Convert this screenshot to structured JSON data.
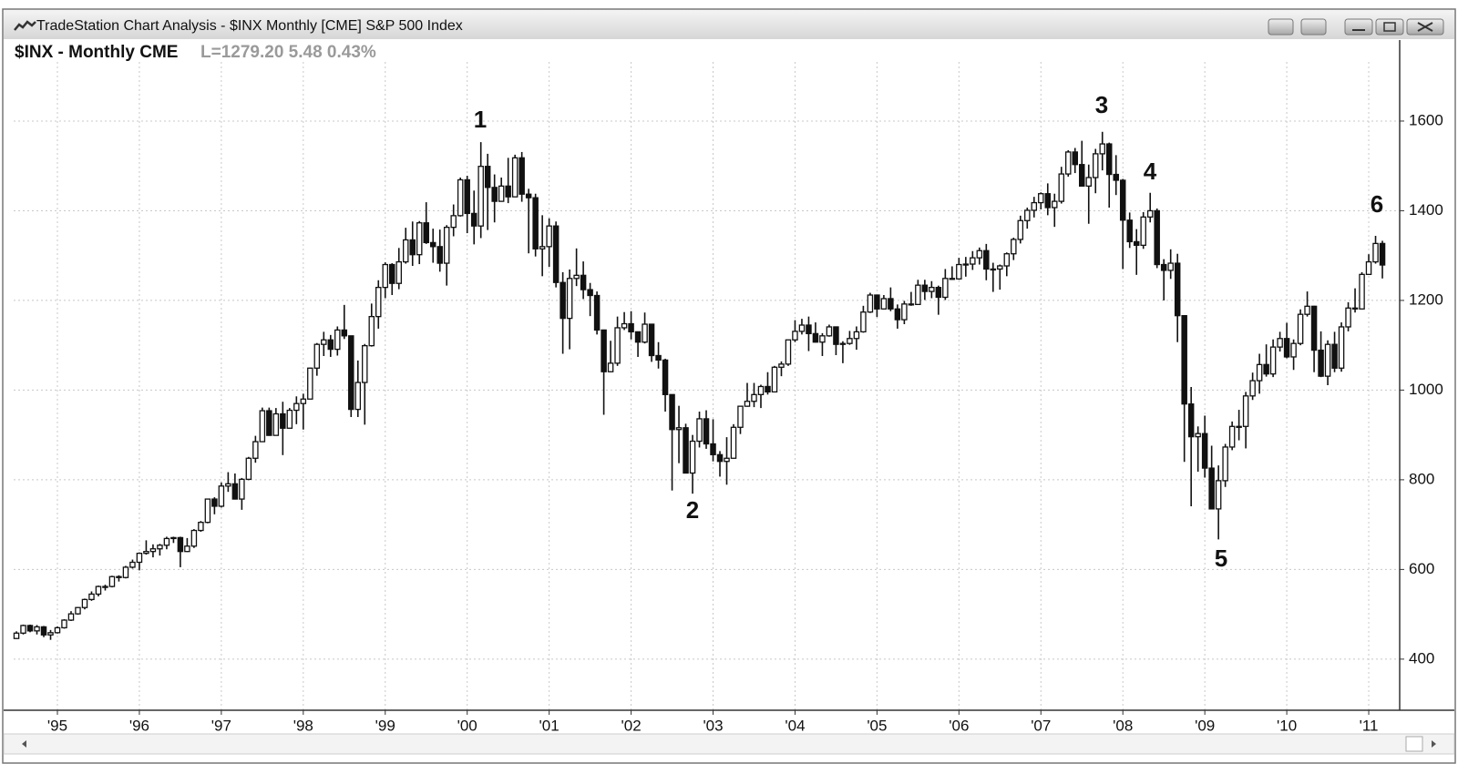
{
  "window": {
    "title": "TradeStation Chart Analysis - $INX Monthly [CME] S&P 500 Index"
  },
  "chart_data": {
    "type": "candlestick",
    "title": "$INX - Monthly CME",
    "subtitle": "L=1279.20 5.48 0.43%",
    "annotations": [
      "1",
      "2",
      "3",
      "4",
      "5",
      "6"
    ],
    "up_color": "#ffffff",
    "down_color": "#111111",
    "line_color": "#111111",
    "grid": true,
    "ylim": [
      286,
      1738
    ],
    "yticks": [
      400,
      600,
      800,
      1000,
      1200,
      1400,
      1600
    ],
    "categories": [
      null,
      null,
      null,
      null,
      null,
      null,
      "'95",
      null,
      null,
      null,
      null,
      null,
      null,
      null,
      null,
      null,
      null,
      null,
      "'96",
      null,
      null,
      null,
      null,
      null,
      null,
      null,
      null,
      null,
      null,
      null,
      "'97",
      null,
      null,
      null,
      null,
      null,
      null,
      null,
      null,
      null,
      null,
      null,
      "'98",
      null,
      null,
      null,
      null,
      null,
      null,
      null,
      null,
      null,
      null,
      null,
      "'99",
      null,
      null,
      null,
      null,
      null,
      null,
      null,
      null,
      null,
      null,
      null,
      "'00",
      null,
      null,
      null,
      null,
      null,
      null,
      null,
      null,
      null,
      null,
      null,
      "'01",
      null,
      null,
      null,
      null,
      null,
      null,
      null,
      null,
      null,
      null,
      null,
      "'02",
      null,
      null,
      null,
      null,
      null,
      null,
      null,
      null,
      null,
      null,
      null,
      "'03",
      null,
      null,
      null,
      null,
      null,
      null,
      null,
      null,
      null,
      null,
      null,
      "'04",
      null,
      null,
      null,
      null,
      null,
      null,
      null,
      null,
      null,
      null,
      null,
      "'05",
      null,
      null,
      null,
      null,
      null,
      null,
      null,
      null,
      null,
      null,
      null,
      "'06",
      null,
      null,
      null,
      null,
      null,
      null,
      null,
      null,
      null,
      null,
      null,
      "'07",
      null,
      null,
      null,
      null,
      null,
      null,
      null,
      null,
      null,
      null,
      null,
      "'08",
      null,
      null,
      null,
      null,
      null,
      null,
      null,
      null,
      null,
      null,
      null,
      "'09",
      null,
      null,
      null,
      null,
      null,
      null,
      null,
      null,
      null,
      null,
      null,
      "'10",
      null,
      null,
      null,
      null,
      null,
      null,
      null,
      null,
      null,
      null,
      null,
      "'11",
      null,
      null
    ],
    "open": [
      446,
      458,
      475,
      463,
      472,
      454,
      459,
      470,
      487,
      501,
      515,
      533,
      545,
      562,
      562,
      584,
      582,
      605,
      616,
      636,
      640,
      646,
      654,
      669,
      671,
      640,
      652,
      687,
      705,
      757,
      741,
      786,
      791,
      757,
      801,
      848,
      885,
      954,
      899,
      947,
      915,
      955,
      970,
      980,
      1049,
      1102,
      1112,
      1091,
      1134,
      1121,
      957,
      1017,
      1099,
      1164,
      1229,
      1280,
      1238,
      1286,
      1335,
      1302,
      1373,
      1329,
      1320,
      1283,
      1363,
      1389,
      1469,
      1394,
      1366,
      1499,
      1452,
      1421,
      1455,
      1431,
      1518,
      1437,
      1429,
      1315,
      1320,
      1366,
      1240,
      1160,
      1249,
      1256,
      1224,
      1211,
      1134,
      1041,
      1060,
      1139,
      1148,
      1130,
      1107,
      1147,
      1077,
      1067,
      990,
      912,
      916,
      815,
      886,
      936,
      880,
      856,
      841,
      848,
      917,
      964,
      975,
      990,
      1008,
      996,
      1051,
      1058,
      1112,
      1131,
      1145,
      1126,
      1107,
      1121,
      1141,
      1102,
      1104,
      1115,
      1130,
      1174,
      1212,
      1181,
      1204,
      1181,
      1157,
      1192,
      1191,
      1234,
      1220,
      1229,
      1207,
      1249,
      1248,
      1280,
      1281,
      1295,
      1311,
      1270,
      1270,
      1277,
      1304,
      1336,
      1378,
      1401,
      1418,
      1438,
      1407,
      1421,
      1482,
      1531,
      1503,
      1455,
      1474,
      1527,
      1549,
      1481,
      1468,
      1379,
      1331,
      1323,
      1386,
      1400,
      1280,
      1267,
      1283,
      1166,
      969,
      896,
      903,
      826,
      735,
      798,
      873,
      919,
      919,
      987,
      1021,
      1057,
      1036,
      1096,
      1115,
      1074,
      1104,
      1169,
      1187,
      1089,
      1031,
      1102,
      1049,
      1141,
      1183,
      1181,
      1258,
      1286,
      1327
    ],
    "high": [
      462,
      477,
      477,
      476,
      474,
      465,
      473,
      489,
      507,
      516,
      535,
      551,
      564,
      566,
      586,
      587,
      608,
      622,
      638,
      665,
      656,
      657,
      673,
      673,
      673,
      670,
      690,
      708,
      757,
      761,
      794,
      817,
      814,
      804,
      851,
      898,
      961,
      961,
      960,
      974,
      960,
      986,
      992,
      1050,
      1105,
      1130,
      1123,
      1142,
      1190,
      1121,
      1066,
      1103,
      1193,
      1245,
      1285,
      1283,
      1317,
      1362,
      1376,
      1377,
      1419,
      1360,
      1358,
      1368,
      1414,
      1474,
      1478,
      1445,
      1553,
      1527,
      1481,
      1474,
      1518,
      1525,
      1531,
      1449,
      1438,
      1390,
      1383,
      1376,
      1263,
      1269,
      1316,
      1287,
      1239,
      1220,
      1135,
      1110,
      1164,
      1174,
      1176,
      1130,
      1173,
      1147,
      1107,
      1070,
      990,
      965,
      925,
      900,
      952,
      955,
      935,
      864,
      895,
      924,
      965,
      1016,
      1016,
      1012,
      1040,
      1054,
      1064,
      1112,
      1156,
      1159,
      1164,
      1151,
      1127,
      1146,
      1141,
      1109,
      1132,
      1142,
      1188,
      1217,
      1212,
      1212,
      1229,
      1191,
      1199,
      1219,
      1246,
      1246,
      1243,
      1233,
      1270,
      1276,
      1295,
      1297,
      1310,
      1318,
      1326,
      1284,
      1280,
      1307,
      1340,
      1389,
      1407,
      1431,
      1441,
      1461,
      1438,
      1498,
      1535,
      1540,
      1556,
      1503,
      1538,
      1576,
      1552,
      1524,
      1471,
      1396,
      1359,
      1397,
      1440,
      1405,
      1292,
      1314,
      1304,
      1167,
      1007,
      919,
      943,
      876,
      832,
      880,
      930,
      956,
      996,
      1039,
      1081,
      1102,
      1113,
      1130,
      1150,
      1113,
      1180,
      1220,
      1188,
      1131,
      1111,
      1130,
      1151,
      1196,
      1227,
      1263,
      1303,
      1344,
      1333
    ],
    "low": [
      445,
      455,
      460,
      455,
      449,
      443,
      457,
      468,
      485,
      499,
      511,
      530,
      540,
      553,
      560,
      573,
      580,
      602,
      598,
      633,
      627,
      631,
      645,
      659,
      605,
      639,
      648,
      684,
      703,
      723,
      738,
      773,
      756,
      733,
      799,
      838,
      884,
      898,
      899,
      855,
      916,
      924,
      912,
      980,
      1032,
      1076,
      1074,
      1077,
      1114,
      940,
      940,
      923,
      1097,
      1137,
      1205,
      1212,
      1225,
      1282,
      1277,
      1281,
      1326,
      1284,
      1264,
      1233,
      1343,
      1387,
      1350,
      1325,
      1339,
      1357,
      1374,
      1420,
      1417,
      1431,
      1420,
      1305,
      1298,
      1254,
      1275,
      1229,
      1081,
      1091,
      1232,
      1203,
      1165,
      1124,
      945,
      1040,
      1054,
      1134,
      1113,
      1074,
      1104,
      1063,
      1048,
      952,
      776,
      837,
      815,
      769,
      872,
      869,
      841,
      807,
      789,
      847,
      902,
      963,
      962,
      960,
      990,
      996,
      1031,
      1054,
      1107,
      1124,
      1087,
      1106,
      1076,
      1119,
      1078,
      1060,
      1101,
      1090,
      1128,
      1172,
      1163,
      1180,
      1176,
      1137,
      1147,
      1188,
      1190,
      1201,
      1205,
      1168,
      1201,
      1246,
      1246,
      1253,
      1268,
      1280,
      1245,
      1219,
      1224,
      1254,
      1290,
      1327,
      1360,
      1385,
      1403,
      1390,
      1364,
      1416,
      1476,
      1484,
      1454,
      1371,
      1439,
      1490,
      1407,
      1435,
      1270,
      1317,
      1257,
      1315,
      1374,
      1272,
      1200,
      1248,
      1107,
      840,
      741,
      818,
      805,
      734,
      667,
      784,
      866,
      888,
      870,
      978,
      992,
      1030,
      1029,
      1086,
      1071,
      1045,
      1100,
      1164,
      1040,
      1029,
      1011,
      1040,
      1041,
      1131,
      1173,
      1180,
      1257,
      1282,
      1249
    ],
    "close": [
      458,
      475,
      463,
      472,
      454,
      459,
      470,
      487,
      501,
      515,
      533,
      545,
      562,
      562,
      584,
      582,
      605,
      616,
      636,
      640,
      646,
      654,
      669,
      671,
      640,
      652,
      687,
      705,
      757,
      741,
      786,
      791,
      757,
      801,
      848,
      885,
      954,
      899,
      947,
      915,
      955,
      970,
      980,
      1049,
      1102,
      1112,
      1091,
      1134,
      1121,
      957,
      1017,
      1099,
      1164,
      1229,
      1280,
      1238,
      1286,
      1335,
      1302,
      1373,
      1329,
      1320,
      1283,
      1363,
      1389,
      1469,
      1394,
      1366,
      1499,
      1452,
      1421,
      1455,
      1431,
      1518,
      1437,
      1429,
      1315,
      1320,
      1366,
      1240,
      1160,
      1249,
      1256,
      1224,
      1211,
      1134,
      1041,
      1060,
      1139,
      1148,
      1130,
      1107,
      1147,
      1077,
      1067,
      990,
      912,
      916,
      815,
      886,
      936,
      880,
      856,
      841,
      848,
      917,
      964,
      975,
      990,
      1008,
      996,
      1051,
      1058,
      1112,
      1131,
      1145,
      1126,
      1107,
      1121,
      1141,
      1102,
      1104,
      1115,
      1130,
      1174,
      1212,
      1181,
      1204,
      1181,
      1157,
      1192,
      1191,
      1234,
      1220,
      1229,
      1207,
      1249,
      1248,
      1280,
      1281,
      1295,
      1311,
      1270,
      1270,
      1277,
      1304,
      1336,
      1378,
      1401,
      1418,
      1438,
      1407,
      1421,
      1482,
      1531,
      1503,
      1455,
      1474,
      1527,
      1549,
      1481,
      1468,
      1379,
      1331,
      1323,
      1386,
      1400,
      1280,
      1267,
      1283,
      1166,
      969,
      896,
      903,
      826,
      735,
      798,
      873,
      919,
      919,
      987,
      1021,
      1057,
      1036,
      1096,
      1115,
      1074,
      1104,
      1169,
      1187,
      1089,
      1031,
      1102,
      1049,
      1141,
      1183,
      1181,
      1258,
      1286,
      1327,
      1279
    ]
  }
}
